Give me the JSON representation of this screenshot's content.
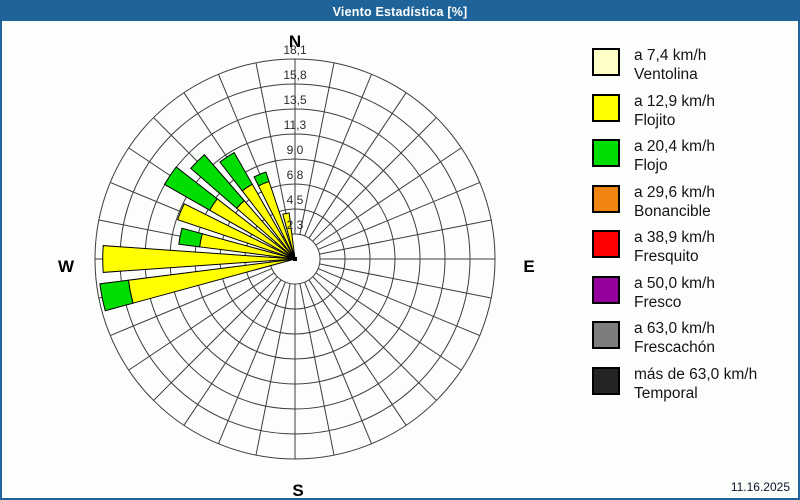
{
  "window": {
    "title": "Viento Estadística [%]"
  },
  "status_bar": {
    "date": "11.16.2025"
  },
  "legend": {
    "items": [
      {
        "speed": "a 7,4 km/h",
        "name": "Ventolina",
        "color": "#ffffc8"
      },
      {
        "speed": "a 12,9 km/h",
        "name": "Flojito",
        "color": "#ffff00"
      },
      {
        "speed": "a 20,4 km/h",
        "name": "Flojo",
        "color": "#00dd00"
      },
      {
        "speed": "a 29,6 km/h",
        "name": "Bonancible",
        "color": "#f08410"
      },
      {
        "speed": "a 38,9 km/h",
        "name": "Fresquito",
        "color": "#ff0000"
      },
      {
        "speed": "a 50,0 km/h",
        "name": "Fresco",
        "color": "#94009c"
      },
      {
        "speed": "a 63,0 km/h",
        "name": "Frescachón",
        "color": "#7d7d7d"
      },
      {
        "speed": "más de 63,0 km/h",
        "name": "Temporal",
        "color": "#242424"
      }
    ]
  },
  "chart_data": {
    "type": "wind-rose-polar-bar",
    "title": "Viento Estadística [%]",
    "units": "%",
    "sectors": 32,
    "rings": 8,
    "radial_max": 18.1,
    "radial_tick_labels": [
      "2,3",
      "4,5",
      "6,8",
      "9,0",
      "11,3",
      "13,5",
      "15,8",
      "18,1"
    ],
    "compass_labels": {
      "n": "N",
      "e": "E",
      "s": "S",
      "w": "W"
    },
    "grid_color": "#3c3c3c",
    "series": [
      {
        "name": "Ventolina",
        "color": "#ffffc8"
      },
      {
        "name": "Flojito",
        "color": "#ffff00"
      },
      {
        "name": "Flojo",
        "color": "#00dd00"
      }
    ],
    "petals": [
      {
        "dir": 348.75,
        "values": [
          0,
          4.2,
          0.0
        ]
      },
      {
        "dir": 337.5,
        "values": [
          0,
          7.4,
          0.9
        ]
      },
      {
        "dir": 326.25,
        "values": [
          0,
          7.8,
          3.3
        ]
      },
      {
        "dir": 315.0,
        "values": [
          0,
          7.0,
          5.5
        ]
      },
      {
        "dir": 303.75,
        "values": [
          0,
          8.9,
          4.7
        ]
      },
      {
        "dir": 292.5,
        "values": [
          0,
          11.2,
          0.0
        ]
      },
      {
        "dir": 281.25,
        "values": [
          0,
          8.7,
          1.9
        ]
      },
      {
        "dir": 270.0,
        "values": [
          0,
          17.4,
          0.0
        ]
      },
      {
        "dir": 258.75,
        "values": [
          0,
          15.2,
          2.6
        ]
      }
    ]
  }
}
